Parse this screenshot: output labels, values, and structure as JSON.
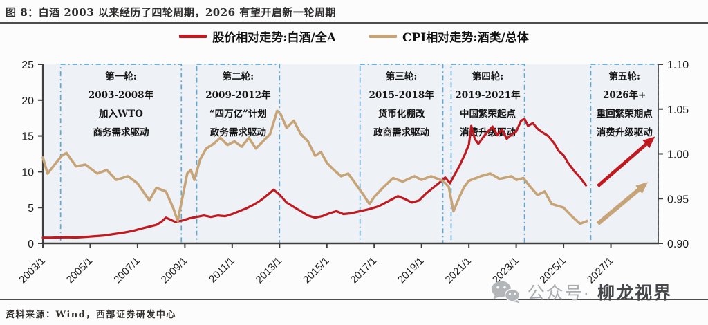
{
  "title": "图 8：白酒 2003 以来经历了四轮周期，2026 有望开启新一轮周期",
  "footer": {
    "source": "资料来源：Wind，西部证券研发中心"
  },
  "watermark": {
    "icon": "wechat-icon",
    "prefix": "公众号·",
    "name": "柳龙视界"
  },
  "legend": [
    {
      "label": "股价相对走势:白酒/全A",
      "color": "#c11920"
    },
    {
      "label": "CPI相对走势:酒类/总体",
      "color": "#c7a477"
    }
  ],
  "colors": {
    "red_series": "#c11920",
    "tan_series": "#c7a477",
    "annotation_border": "#5fa8d5",
    "plot_background": "#eef1f5",
    "axis": "#3f3f3f",
    "rule": "#4d4d4d"
  },
  "chart_data": {
    "type": "line",
    "title": "图 8：白酒 2003 以来经历了四轮周期，2026 有望开启新一轮周期",
    "x_axis": {
      "domain": [
        2003,
        2029
      ],
      "tick_step_years": 2,
      "ticks": [
        "2003/1",
        "2005/1",
        "2007/1",
        "2009/1",
        "2011/1",
        "2013/1",
        "2015/1",
        "2017/1",
        "2019/1",
        "2021/1",
        "2023/1",
        "2025/1",
        "2027/1"
      ]
    },
    "y_axis_left": {
      "domain": [
        0,
        25
      ],
      "ticks": [
        "0",
        "5",
        "10",
        "15",
        "20",
        "25"
      ]
    },
    "y_axis_right": {
      "domain": [
        0.9,
        1.1
      ],
      "ticks": [
        "0.90",
        "0.95",
        "1.00",
        "1.05",
        "1.10"
      ]
    },
    "grid": false,
    "legend_position": "top-center",
    "series": [
      {
        "name": "股价相对走势:白酒/全A",
        "axis": "left",
        "color": "#c11920",
        "width": 3.2,
        "points": [
          [
            2003.0,
            0.8
          ],
          [
            2003.3,
            0.78
          ],
          [
            2003.6,
            0.82
          ],
          [
            2004.0,
            0.85
          ],
          [
            2004.4,
            0.82
          ],
          [
            2004.8,
            0.9
          ],
          [
            2005.2,
            1.0
          ],
          [
            2005.6,
            1.1
          ],
          [
            2006.0,
            1.3
          ],
          [
            2006.4,
            1.5
          ],
          [
            2006.8,
            1.75
          ],
          [
            2007.2,
            2.1
          ],
          [
            2007.5,
            2.35
          ],
          [
            2007.8,
            2.6
          ],
          [
            2008.0,
            3.0
          ],
          [
            2008.2,
            3.6
          ],
          [
            2008.4,
            3.3
          ],
          [
            2008.6,
            3.0
          ],
          [
            2008.9,
            3.2
          ],
          [
            2009.2,
            3.5
          ],
          [
            2009.5,
            3.7
          ],
          [
            2009.8,
            3.9
          ],
          [
            2010.1,
            3.7
          ],
          [
            2010.4,
            3.9
          ],
          [
            2010.7,
            3.8
          ],
          [
            2011.0,
            4.1
          ],
          [
            2011.3,
            4.5
          ],
          [
            2011.6,
            4.9
          ],
          [
            2011.9,
            5.4
          ],
          [
            2012.2,
            6.0
          ],
          [
            2012.5,
            6.8
          ],
          [
            2012.75,
            7.5
          ],
          [
            2013.0,
            6.8
          ],
          [
            2013.3,
            5.7
          ],
          [
            2013.6,
            5.1
          ],
          [
            2013.9,
            4.5
          ],
          [
            2014.2,
            3.9
          ],
          [
            2014.5,
            3.6
          ],
          [
            2014.8,
            3.8
          ],
          [
            2015.1,
            4.2
          ],
          [
            2015.4,
            4.5
          ],
          [
            2015.7,
            4.1
          ],
          [
            2016.0,
            4.2
          ],
          [
            2016.4,
            4.5
          ],
          [
            2016.8,
            4.8
          ],
          [
            2017.2,
            5.2
          ],
          [
            2017.6,
            5.9
          ],
          [
            2018.0,
            6.6
          ],
          [
            2018.3,
            6.2
          ],
          [
            2018.6,
            5.7
          ],
          [
            2018.9,
            6.0
          ],
          [
            2019.2,
            7.0
          ],
          [
            2019.5,
            7.8
          ],
          [
            2019.8,
            8.6
          ],
          [
            2020.0,
            9.2
          ],
          [
            2020.2,
            8.4
          ],
          [
            2020.4,
            9.6
          ],
          [
            2020.6,
            10.8
          ],
          [
            2020.8,
            12.2
          ],
          [
            2021.0,
            13.8
          ],
          [
            2021.1,
            16.4
          ],
          [
            2021.25,
            14.6
          ],
          [
            2021.4,
            13.9
          ],
          [
            2021.6,
            14.8
          ],
          [
            2021.8,
            15.6
          ],
          [
            2022.0,
            16.3
          ],
          [
            2022.2,
            15.1
          ],
          [
            2022.4,
            15.9
          ],
          [
            2022.6,
            14.6
          ],
          [
            2022.8,
            15.2
          ],
          [
            2023.0,
            15.6
          ],
          [
            2023.2,
            17.1
          ],
          [
            2023.35,
            17.4
          ],
          [
            2023.5,
            16.4
          ],
          [
            2023.7,
            16.8
          ],
          [
            2023.9,
            16.0
          ],
          [
            2024.1,
            15.5
          ],
          [
            2024.35,
            15.0
          ],
          [
            2024.6,
            14.0
          ],
          [
            2024.8,
            12.9
          ],
          [
            2025.0,
            12.3
          ],
          [
            2025.2,
            11.2
          ],
          [
            2025.45,
            10.1
          ],
          [
            2025.7,
            9.2
          ],
          [
            2025.95,
            8.1
          ]
        ]
      },
      {
        "name": "CPI相对走势:酒类/总体",
        "axis": "right",
        "color": "#c7a477",
        "width": 3.6,
        "points": [
          [
            2003.0,
            0.996
          ],
          [
            2003.2,
            0.978
          ],
          [
            2003.5,
            0.988
          ],
          [
            2003.8,
            0.998
          ],
          [
            2004.0,
            1.001
          ],
          [
            2004.4,
            0.986
          ],
          [
            2004.8,
            0.988
          ],
          [
            2005.3,
            0.978
          ],
          [
            2005.7,
            0.982
          ],
          [
            2006.1,
            0.971
          ],
          [
            2006.6,
            0.975
          ],
          [
            2007.0,
            0.967
          ],
          [
            2007.5,
            0.948
          ],
          [
            2007.8,
            0.962
          ],
          [
            2008.2,
            0.958
          ],
          [
            2008.5,
            0.94
          ],
          [
            2008.7,
            0.925
          ],
          [
            2008.9,
            0.952
          ],
          [
            2009.1,
            0.978
          ],
          [
            2009.25,
            0.982
          ],
          [
            2009.4,
            0.971
          ],
          [
            2009.65,
            0.994
          ],
          [
            2009.9,
            1.006
          ],
          [
            2010.2,
            1.011
          ],
          [
            2010.5,
            1.018
          ],
          [
            2010.8,
            1.01
          ],
          [
            2011.1,
            1.014
          ],
          [
            2011.4,
            1.008
          ],
          [
            2011.7,
            1.018
          ],
          [
            2012.0,
            1.006
          ],
          [
            2012.3,
            1.014
          ],
          [
            2012.6,
            1.022
          ],
          [
            2012.9,
            1.048
          ],
          [
            2013.05,
            1.044
          ],
          [
            2013.3,
            1.029
          ],
          [
            2013.6,
            1.037
          ],
          [
            2013.9,
            1.022
          ],
          [
            2014.2,
            1.014
          ],
          [
            2014.5,
            0.998
          ],
          [
            2014.75,
            1.002
          ],
          [
            2015.0,
            0.99
          ],
          [
            2015.3,
            0.982
          ],
          [
            2015.6,
            0.975
          ],
          [
            2015.9,
            0.978
          ],
          [
            2016.2,
            0.967
          ],
          [
            2016.5,
            0.956
          ],
          [
            2016.8,
            0.944
          ],
          [
            2017.0,
            0.952
          ],
          [
            2017.4,
            0.963
          ],
          [
            2017.8,
            0.973
          ],
          [
            2018.2,
            0.969
          ],
          [
            2018.7,
            0.975
          ],
          [
            2019.0,
            0.971
          ],
          [
            2019.4,
            0.975
          ],
          [
            2019.9,
            0.97
          ],
          [
            2020.15,
            0.963
          ],
          [
            2020.35,
            0.936
          ],
          [
            2020.6,
            0.952
          ],
          [
            2020.8,
            0.963
          ],
          [
            2021.0,
            0.97
          ],
          [
            2021.5,
            0.975
          ],
          [
            2021.9,
            0.978
          ],
          [
            2022.3,
            0.972
          ],
          [
            2022.8,
            0.975
          ],
          [
            2023.0,
            0.971
          ],
          [
            2023.3,
            0.973
          ],
          [
            2023.6,
            0.963
          ],
          [
            2023.9,
            0.954
          ],
          [
            2024.2,
            0.958
          ],
          [
            2024.5,
            0.944
          ],
          [
            2025.0,
            0.94
          ],
          [
            2025.4,
            0.929
          ],
          [
            2025.7,
            0.922
          ],
          [
            2026.0,
            0.925
          ]
        ]
      }
    ],
    "annotations": [
      {
        "x_start": 2003.75,
        "x_end": 2008.85,
        "lines": [
          "第一轮:",
          "2003-2008年",
          "加入WTO",
          "商务需求驱动"
        ]
      },
      {
        "x_start": 2009.5,
        "x_end": 2013.0,
        "lines": [
          "第二轮:",
          "2009-2012年",
          "“四万亿”计划",
          "政务需求驱动"
        ]
      },
      {
        "x_start": 2016.4,
        "x_end": 2019.9,
        "lines": [
          "第三轮:",
          "2015-2018年",
          "货币化棚改",
          "政商需求驱动"
        ]
      },
      {
        "x_start": 2020.25,
        "x_end": 2023.35,
        "lines": [
          "第四轮:",
          "2019-2021年",
          "中国繁荣起点",
          "消费升级驱动"
        ]
      },
      {
        "x_start": 2026.15,
        "x_end": 2029.0,
        "lines": [
          "第五轮:",
          "2026年+",
          "重回繁荣期点",
          "消费升级驱动"
        ]
      }
    ],
    "arrows": [
      {
        "axis": "left",
        "color": "#c11920",
        "width": 5,
        "from": [
          2026.45,
          8.0
        ],
        "to": [
          2028.75,
          14.6
        ]
      },
      {
        "axis": "right",
        "color": "#c7a477",
        "width": 6,
        "from": [
          2026.45,
          0.922
        ],
        "to": [
          2028.45,
          0.966
        ]
      }
    ]
  }
}
